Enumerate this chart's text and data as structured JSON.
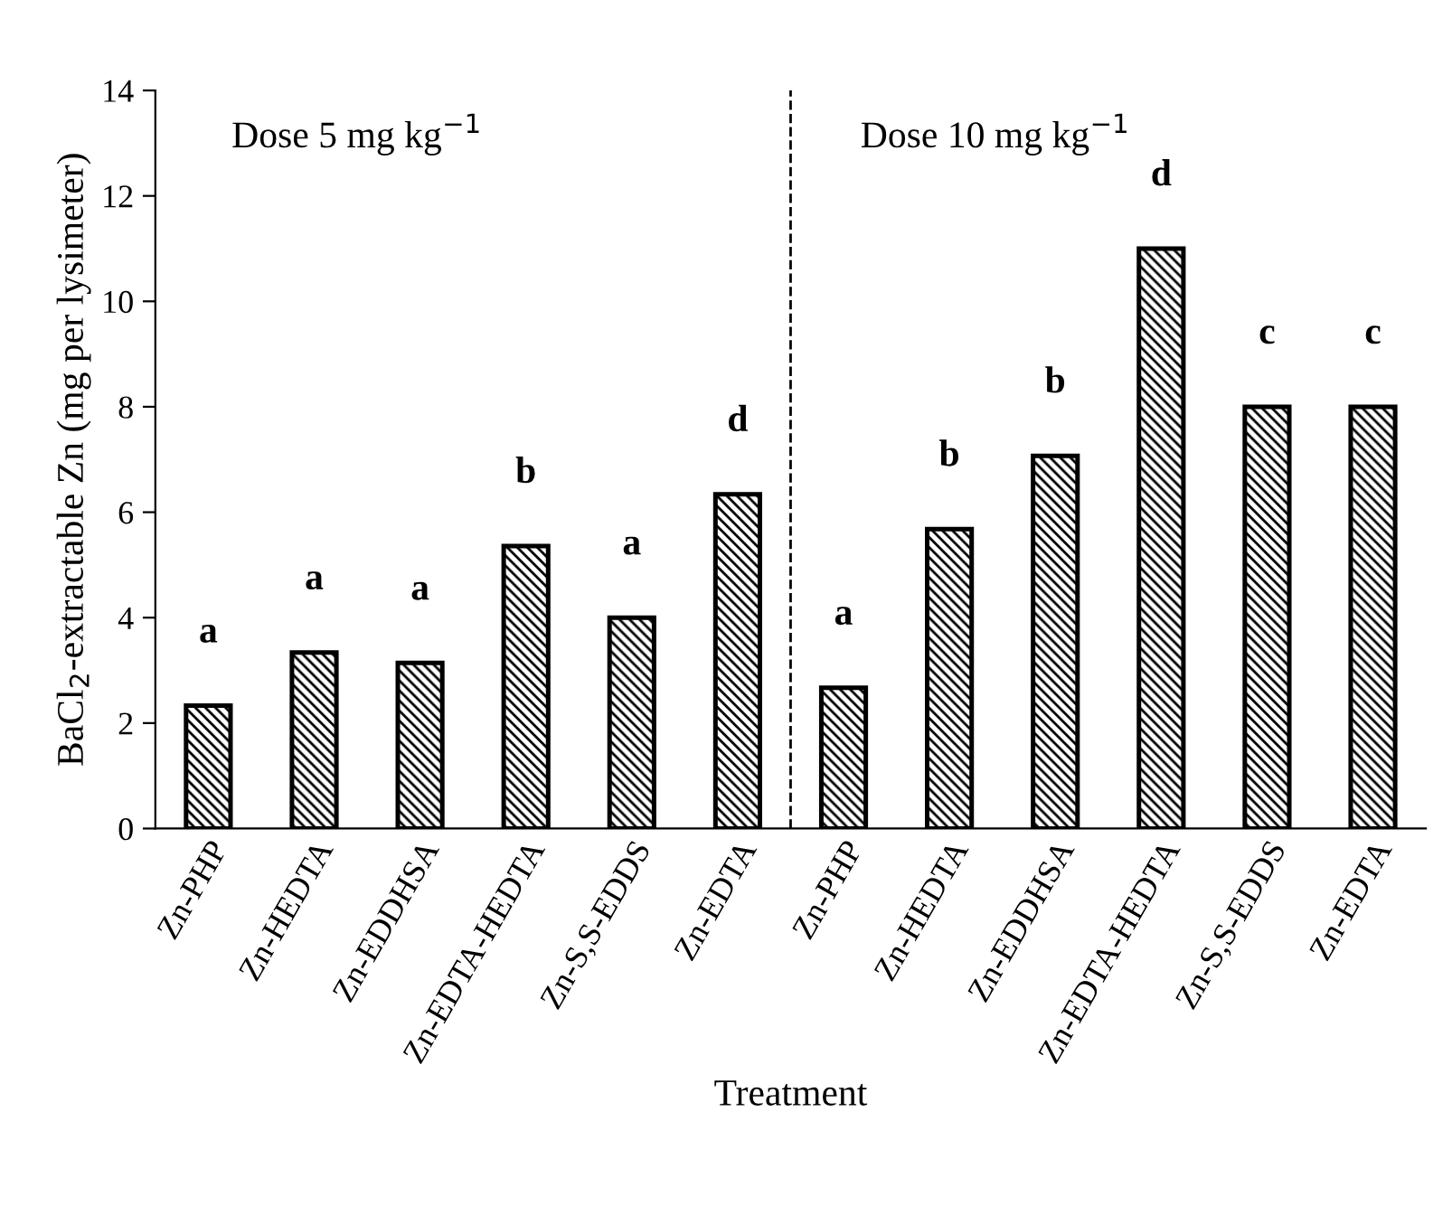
{
  "chart_data": {
    "type": "bar",
    "xlabel": "Treatment",
    "ylabel": "BaCl$_{2}$-extractable Zn (mg per lysimeter)",
    "categories": [
      "Zn-PHP",
      "Zn-HEDTA",
      "Zn-EDDHSA",
      "Zn-EDTA-HEDTA",
      "Zn-S,S-EDDS",
      "Zn-EDTA",
      "Zn-PHP",
      "Zn-HEDTA",
      "Zn-EDDHSA",
      "Zn-EDTA-HEDTA",
      "Zn-S,S-EDDS",
      "Zn-EDTA"
    ],
    "values": [
      2.33,
      3.34,
      3.14,
      5.36,
      4.0,
      6.34,
      2.67,
      5.68,
      7.07,
      11.0,
      8.0,
      8.0
    ],
    "color": "#000000",
    "ylim": [
      0,
      14
    ],
    "yticks": [
      0,
      2,
      4,
      6,
      8,
      10,
      12,
      14
    ],
    "grid": false,
    "annotations": [
      "Dose 5 mg kg$^{−1}$",
      "Dose 10 mg kg$^{−1}$",
      "a",
      "a",
      "a",
      "b",
      "a",
      "d",
      "a",
      "b",
      "b",
      "d",
      "c",
      "c"
    ]
  }
}
